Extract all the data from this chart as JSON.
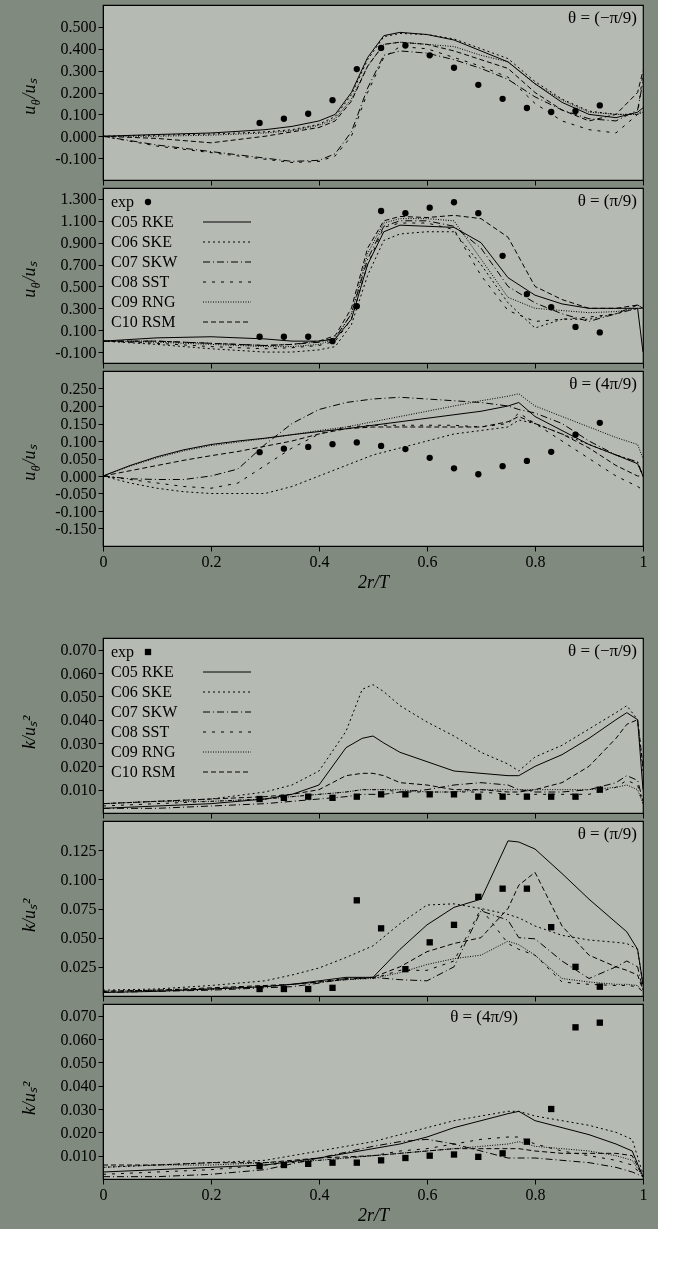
{
  "chart_data": [
    {
      "type": "line",
      "ylabel": "u$_{θ}$/uₛ",
      "xlim": [
        0,
        1
      ],
      "ylim": [
        -0.2,
        0.6
      ],
      "xticks": [
        0,
        0.2,
        0.4,
        0.6,
        0.8,
        1
      ],
      "tick_labels": "y",
      "yticks": [
        {
          "value": -0.1,
          "label": "-0.100"
        },
        {
          "value": 0,
          "label": "0.000"
        },
        {
          "value": 0.1,
          "label": "0.100"
        },
        {
          "value": 0.2,
          "label": "0.200"
        },
        {
          "value": 0.3,
          "label": "0.300"
        },
        {
          "value": 0.4,
          "label": "0.400"
        },
        {
          "value": 0.5,
          "label": "0.500"
        }
      ],
      "annotations": [
        "θ = (−π/9)"
      ],
      "x": [
        0,
        0.1,
        0.2,
        0.3,
        0.35,
        0.4,
        0.43,
        0.46,
        0.49,
        0.52,
        0.55,
        0.6,
        0.65,
        0.7,
        0.75,
        0.8,
        0.85,
        0.9,
        0.95,
        0.99,
        1.0
      ],
      "series": [
        {
          "color": "#000000",
          "line_style": "solid",
          "values": [
            0,
            0.008,
            0.015,
            0.03,
            0.045,
            0.07,
            0.1,
            0.2,
            0.36,
            0.46,
            0.475,
            0.465,
            0.44,
            0.39,
            0.34,
            0.24,
            0.155,
            0.1,
            0.085,
            0.11,
            0.13
          ]
        },
        {
          "color": "#000000",
          "line_style": "dotted",
          "values": [
            0,
            0.005,
            0.01,
            0.02,
            0.03,
            0.055,
            0.09,
            0.19,
            0.35,
            0.455,
            0.47,
            0.465,
            0.445,
            0.4,
            0.355,
            0.25,
            0.17,
            0.115,
            0.1,
            0.1,
            0.12
          ]
        },
        {
          "color": "#000000",
          "line_style": "dashdot",
          "values": [
            0,
            -0.04,
            -0.07,
            -0.1,
            -0.115,
            -0.11,
            -0.08,
            0.02,
            0.22,
            0.37,
            0.39,
            0.38,
            0.35,
            0.31,
            0.26,
            0.18,
            0.12,
            0.08,
            0.07,
            0.12,
            0.25
          ]
        },
        {
          "color": "#000000",
          "line_style": "loosely dashed",
          "values": [
            0,
            -0.045,
            -0.075,
            -0.105,
            -0.12,
            -0.115,
            -0.09,
            0.0,
            0.2,
            0.36,
            0.41,
            0.4,
            0.36,
            0.32,
            0.27,
            0.15,
            0.07,
            0.03,
            0.015,
            0.1,
            0.29
          ]
        },
        {
          "color": "#000000",
          "line_style": "densely dotted",
          "values": [
            0,
            0.0,
            0.005,
            0.015,
            0.025,
            0.05,
            0.08,
            0.17,
            0.32,
            0.42,
            0.43,
            0.42,
            0.41,
            0.37,
            0.34,
            0.24,
            0.165,
            0.11,
            0.1,
            0.1,
            0.11
          ]
        },
        {
          "color": "#000000",
          "line_style": "dashed",
          "values": [
            0,
            -0.01,
            -0.03,
            0.0,
            0.02,
            0.04,
            0.07,
            0.16,
            0.32,
            0.42,
            0.43,
            0.42,
            0.39,
            0.35,
            0.31,
            0.2,
            0.12,
            0.07,
            0.1,
            0.2,
            0.3
          ]
        },
        {
          "type": "scatter",
          "color": "#000000",
          "marker": "circle",
          "x": [
            0.29,
            0.335,
            0.38,
            0.425,
            0.47,
            0.515,
            0.56,
            0.605,
            0.65,
            0.695,
            0.74,
            0.785,
            0.83,
            0.875,
            0.92
          ],
          "values": [
            0.061,
            0.08,
            0.103,
            0.165,
            0.307,
            0.404,
            0.415,
            0.37,
            0.313,
            0.235,
            0.171,
            0.129,
            0.111,
            0.116,
            0.141
          ]
        }
      ]
    },
    {
      "type": "line",
      "ylabel": "u$_{θ}$/uₛ",
      "xlim": [
        0,
        1
      ],
      "ylim": [
        -0.2,
        1.4
      ],
      "xticks": [
        0,
        0.2,
        0.4,
        0.6,
        0.8,
        1
      ],
      "tick_labels": "y",
      "legend": "top left",
      "yticks": [
        {
          "value": -0.1,
          "label": "-0.100"
        },
        {
          "value": 0.1,
          "label": "0.100"
        },
        {
          "value": 0.3,
          "label": "0.300"
        },
        {
          "value": 0.5,
          "label": "0.500"
        },
        {
          "value": 0.7,
          "label": "0.700"
        },
        {
          "value": 0.9,
          "label": "0.900"
        },
        {
          "value": 1.1,
          "label": "1.100"
        },
        {
          "value": 1.3,
          "label": "1.300"
        }
      ],
      "annotations": [
        "θ = (π/9)"
      ],
      "x": [
        0,
        0.1,
        0.2,
        0.3,
        0.35,
        0.4,
        0.43,
        0.46,
        0.49,
        0.52,
        0.55,
        0.6,
        0.65,
        0.7,
        0.75,
        0.8,
        0.85,
        0.9,
        0.95,
        0.99,
        1.0
      ],
      "series": [
        {
          "type": "scatter",
          "name": "exp",
          "color": "#000000",
          "marker": "circle",
          "x": [
            0.29,
            0.335,
            0.38,
            0.425,
            0.47,
            0.515,
            0.56,
            0.605,
            0.65,
            0.695,
            0.74,
            0.785,
            0.83,
            0.875,
            0.92
          ],
          "values": [
            0.04,
            0.04,
            0.04,
            0.0,
            0.32,
            1.19,
            1.17,
            1.22,
            1.27,
            1.17,
            0.78,
            0.43,
            0.31,
            0.13,
            0.08
          ]
        },
        {
          "name": "C05 RKE",
          "color": "#000000",
          "line_style": "solid",
          "values": [
            0,
            0.03,
            0.04,
            0.02,
            0.0,
            0.0,
            0.02,
            0.2,
            0.7,
            1.0,
            1.06,
            1.05,
            1.04,
            0.9,
            0.58,
            0.42,
            0.34,
            0.3,
            0.3,
            0.3,
            -0.1
          ]
        },
        {
          "name": "C06 SKE",
          "color": "#000000",
          "line_style": "dotted",
          "values": [
            0,
            -0.03,
            -0.07,
            -0.1,
            -0.1,
            -0.08,
            -0.05,
            0.15,
            0.6,
            0.92,
            0.98,
            1.0,
            1.0,
            0.7,
            0.35,
            0.12,
            0.2,
            0.2,
            0.25,
            0.3,
            0.3
          ]
        },
        {
          "name": "C07 SKW",
          "color": "#000000",
          "line_style": "dashdot",
          "values": [
            0,
            0.0,
            -0.02,
            -0.04,
            -0.03,
            -0.01,
            0.03,
            0.25,
            0.75,
            1.05,
            1.1,
            1.1,
            1.05,
            0.85,
            0.5,
            0.35,
            0.25,
            0.18,
            0.25,
            0.33,
            0.3
          ]
        },
        {
          "name": "C08 SST",
          "color": "#000000",
          "line_style": "loosely dashed",
          "values": [
            0,
            -0.02,
            -0.05,
            -0.07,
            -0.06,
            -0.04,
            0.0,
            0.2,
            0.7,
            1.04,
            1.08,
            1.08,
            1.02,
            0.6,
            0.28,
            0.18,
            0.2,
            0.22,
            0.25,
            0.3,
            0.3
          ]
        },
        {
          "name": "C09 RNG",
          "color": "#000000",
          "line_style": "densely dotted",
          "values": [
            0,
            -0.01,
            -0.03,
            -0.05,
            -0.05,
            -0.03,
            0.02,
            0.25,
            0.8,
            1.08,
            1.12,
            1.12,
            1.1,
            0.75,
            0.4,
            0.3,
            0.28,
            0.26,
            0.27,
            0.3,
            0.3
          ]
        },
        {
          "name": "C10 RSM",
          "color": "#000000",
          "line_style": "dashed",
          "values": [
            0,
            0.0,
            -0.02,
            -0.04,
            -0.03,
            0.0,
            0.05,
            0.3,
            0.85,
            1.1,
            1.14,
            1.13,
            1.15,
            1.12,
            0.95,
            0.5,
            0.38,
            0.3,
            0.3,
            0.33,
            0.3
          ]
        }
      ]
    },
    {
      "type": "line",
      "ylabel": "u$_{θ}$/uₛ",
      "xlabel": "2r/T",
      "xlim": [
        0,
        1
      ],
      "ylim": [
        -0.2,
        0.3
      ],
      "xticks": [
        0,
        0.2,
        0.4,
        0.6,
        0.8,
        1
      ],
      "yticks": [
        {
          "value": -0.15,
          "label": "-0.150"
        },
        {
          "value": -0.1,
          "label": "-0.100"
        },
        {
          "value": -0.05,
          "label": "-0.050"
        },
        {
          "value": 0,
          "label": "0.000"
        },
        {
          "value": 0.05,
          "label": "0.050"
        },
        {
          "value": 0.1,
          "label": "0.100"
        },
        {
          "value": 0.15,
          "label": "0.150"
        },
        {
          "value": 0.2,
          "label": "0.200"
        },
        {
          "value": 0.25,
          "label": "0.250"
        }
      ],
      "annotations": [
        "θ = (4π/9)"
      ],
      "x": [
        0,
        0.05,
        0.1,
        0.15,
        0.2,
        0.25,
        0.3,
        0.35,
        0.4,
        0.45,
        0.5,
        0.55,
        0.6,
        0.65,
        0.7,
        0.75,
        0.77,
        0.8,
        0.85,
        0.9,
        0.95,
        0.99,
        1.0
      ],
      "series": [
        {
          "color": "#000000",
          "line_style": "solid",
          "values": [
            0,
            0.03,
            0.055,
            0.075,
            0.09,
            0.1,
            0.108,
            0.118,
            0.127,
            0.135,
            0.145,
            0.155,
            0.165,
            0.175,
            0.185,
            0.2,
            0.21,
            0.17,
            0.13,
            0.09,
            0.06,
            0.035,
            0.0
          ]
        },
        {
          "color": "#000000",
          "line_style": "dotted",
          "values": [
            0,
            -0.02,
            -0.035,
            -0.045,
            -0.05,
            -0.05,
            -0.05,
            -0.03,
            0.0,
            0.03,
            0.06,
            0.08,
            0.1,
            0.12,
            0.13,
            0.14,
            0.16,
            0.15,
            0.12,
            0.09,
            0.06,
            0.04,
            0.0
          ]
        },
        {
          "color": "#000000",
          "line_style": "dashdot",
          "values": [
            0,
            -0.008,
            -0.01,
            -0.01,
            0.0,
            0.02,
            0.09,
            0.15,
            0.19,
            0.21,
            0.22,
            0.225,
            0.22,
            0.215,
            0.21,
            0.2,
            0.19,
            0.18,
            0.15,
            0.1,
            0.06,
            0.04,
            0.0
          ]
        },
        {
          "color": "#000000",
          "line_style": "loosely dashed",
          "values": [
            0,
            -0.01,
            -0.02,
            -0.03,
            -0.035,
            -0.02,
            0.03,
            0.08,
            0.12,
            0.14,
            0.145,
            0.145,
            0.145,
            0.145,
            0.14,
            0.15,
            0.18,
            0.15,
            0.1,
            0.05,
            0.0,
            -0.03,
            -0.04
          ]
        },
        {
          "color": "#000000",
          "line_style": "densely dotted",
          "values": [
            0,
            0.028,
            0.052,
            0.072,
            0.087,
            0.097,
            0.107,
            0.118,
            0.13,
            0.14,
            0.155,
            0.17,
            0.185,
            0.2,
            0.215,
            0.228,
            0.235,
            0.2,
            0.17,
            0.14,
            0.11,
            0.09,
            0.05
          ]
        },
        {
          "color": "#000000",
          "line_style": "dashed",
          "values": [
            0,
            0.015,
            0.03,
            0.045,
            0.058,
            0.07,
            0.085,
            0.1,
            0.12,
            0.135,
            0.14,
            0.14,
            0.14,
            0.14,
            0.14,
            0.155,
            0.17,
            0.15,
            0.12,
            0.08,
            0.03,
            0.0,
            0.0
          ]
        },
        {
          "type": "scatter",
          "color": "#000000",
          "marker": "circle",
          "x": [
            0.29,
            0.335,
            0.38,
            0.425,
            0.47,
            0.515,
            0.56,
            0.605,
            0.65,
            0.695,
            0.74,
            0.785,
            0.83,
            0.875,
            0.92
          ],
          "values": [
            0.068,
            0.078,
            0.083,
            0.091,
            0.096,
            0.086,
            0.077,
            0.052,
            0.022,
            0.005,
            0.028,
            0.043,
            0.069,
            0.118,
            0.152
          ]
        }
      ]
    },
    {
      "type": "line",
      "ylabel": "k/uₛ²",
      "xlim": [
        0,
        1
      ],
      "ylim": [
        0,
        0.075
      ],
      "xticks": [
        0,
        0.2,
        0.4,
        0.6,
        0.8,
        1
      ],
      "tick_labels": "y",
      "legend": "top left",
      "yticks": [
        {
          "value": 0.01,
          "label": "0.010"
        },
        {
          "value": 0.02,
          "label": "0.020"
        },
        {
          "value": 0.03,
          "label": "0.030"
        },
        {
          "value": 0.04,
          "label": "0.040"
        },
        {
          "value": 0.05,
          "label": "0.050"
        },
        {
          "value": 0.06,
          "label": "0.060"
        },
        {
          "value": 0.07,
          "label": "0.070"
        }
      ],
      "annotations": [
        "θ = (−π/9)"
      ],
      "x": [
        0,
        0.1,
        0.2,
        0.3,
        0.35,
        0.4,
        0.45,
        0.48,
        0.5,
        0.52,
        0.55,
        0.6,
        0.65,
        0.7,
        0.75,
        0.77,
        0.8,
        0.85,
        0.9,
        0.95,
        0.97,
        0.99,
        1.0
      ],
      "series": [
        {
          "type": "scatter",
          "name": "exp",
          "color": "#000000",
          "marker": "square",
          "x": [
            0.29,
            0.335,
            0.38,
            0.425,
            0.47,
            0.515,
            0.56,
            0.605,
            0.65,
            0.695,
            0.74,
            0.785,
            0.83,
            0.875,
            0.92
          ],
          "values": [
            0.006,
            0.0065,
            0.007,
            0.0065,
            0.007,
            0.008,
            0.008,
            0.008,
            0.008,
            0.007,
            0.007,
            0.007,
            0.007,
            0.007,
            0.01
          ]
        },
        {
          "name": "C05 RKE",
          "color": "#000000",
          "line_style": "solid",
          "values": [
            0.002,
            0.003,
            0.004,
            0.006,
            0.008,
            0.012,
            0.028,
            0.032,
            0.033,
            0.03,
            0.026,
            0.022,
            0.018,
            0.017,
            0.016,
            0.016,
            0.02,
            0.025,
            0.032,
            0.04,
            0.043,
            0.04,
            0.01
          ]
        },
        {
          "name": "C06 SKE",
          "color": "#000000",
          "line_style": "dotted",
          "values": [
            0.004,
            0.005,
            0.006,
            0.009,
            0.012,
            0.018,
            0.035,
            0.053,
            0.055,
            0.052,
            0.046,
            0.039,
            0.033,
            0.026,
            0.021,
            0.018,
            0.024,
            0.029,
            0.036,
            0.043,
            0.046,
            0.04,
            0.018
          ]
        },
        {
          "name": "C07 SKW",
          "color": "#000000",
          "line_style": "dashdot",
          "values": [
            0.002,
            0.002,
            0.003,
            0.004,
            0.005,
            0.006,
            0.007,
            0.008,
            0.008,
            0.008,
            0.009,
            0.01,
            0.012,
            0.013,
            0.012,
            0.01,
            0.009,
            0.009,
            0.01,
            0.013,
            0.016,
            0.014,
            0.005
          ]
        },
        {
          "name": "C08 SST",
          "color": "#000000",
          "line_style": "loosely dashed",
          "values": [
            0.003,
            0.004,
            0.005,
            0.006,
            0.007,
            0.008,
            0.009,
            0.01,
            0.01,
            0.01,
            0.009,
            0.009,
            0.009,
            0.009,
            0.008,
            0.008,
            0.008,
            0.008,
            0.008,
            0.011,
            0.014,
            0.012,
            0.004
          ]
        },
        {
          "name": "C09 RNG",
          "color": "#000000",
          "line_style": "densely dotted",
          "values": [
            0.004,
            0.005,
            0.005,
            0.006,
            0.007,
            0.008,
            0.009,
            0.01,
            0.01,
            0.01,
            0.01,
            0.009,
            0.009,
            0.01,
            0.01,
            0.01,
            0.01,
            0.01,
            0.01,
            0.011,
            0.012,
            0.01,
            0.004
          ]
        },
        {
          "name": "C10 RSM",
          "color": "#000000",
          "line_style": "dashed",
          "values": [
            0.004,
            0.005,
            0.006,
            0.007,
            0.008,
            0.01,
            0.016,
            0.017,
            0.017,
            0.016,
            0.013,
            0.012,
            0.01,
            0.01,
            0.009,
            0.009,
            0.01,
            0.013,
            0.02,
            0.032,
            0.038,
            0.04,
            0.02
          ]
        }
      ]
    },
    {
      "type": "line",
      "ylabel": "k/uₛ²",
      "xlim": [
        0,
        1
      ],
      "ylim": [
        0,
        0.15
      ],
      "xticks": [
        0,
        0.2,
        0.4,
        0.6,
        0.8,
        1
      ],
      "tick_labels": "y",
      "yticks": [
        {
          "value": 0.025,
          "label": "0.025"
        },
        {
          "value": 0.05,
          "label": "0.050"
        },
        {
          "value": 0.075,
          "label": "0.075"
        },
        {
          "value": 0.1,
          "label": "0.100"
        },
        {
          "value": 0.125,
          "label": "0.125"
        }
      ],
      "annotations": [
        "θ = (π/9)"
      ],
      "x": [
        0,
        0.1,
        0.2,
        0.3,
        0.35,
        0.4,
        0.45,
        0.5,
        0.55,
        0.6,
        0.65,
        0.7,
        0.75,
        0.77,
        0.8,
        0.85,
        0.9,
        0.95,
        0.97,
        0.99,
        1.0
      ],
      "series": [
        {
          "color": "#000000",
          "line_style": "solid",
          "values": [
            0.003,
            0.004,
            0.006,
            0.008,
            0.01,
            0.013,
            0.016,
            0.016,
            0.04,
            0.061,
            0.076,
            0.083,
            0.133,
            0.132,
            0.126,
            0.105,
            0.083,
            0.063,
            0.055,
            0.04,
            0.01
          ]
        },
        {
          "color": "#000000",
          "line_style": "dotted",
          "values": [
            0.005,
            0.006,
            0.009,
            0.013,
            0.018,
            0.024,
            0.033,
            0.043,
            0.062,
            0.078,
            0.079,
            0.075,
            0.07,
            0.067,
            0.06,
            0.052,
            0.048,
            0.046,
            0.045,
            0.04,
            0.008
          ]
        },
        {
          "color": "#000000",
          "line_style": "dashdot",
          "values": [
            0.003,
            0.004,
            0.005,
            0.007,
            0.008,
            0.011,
            0.015,
            0.016,
            0.014,
            0.013,
            0.025,
            0.073,
            0.065,
            0.05,
            0.049,
            0.03,
            0.015,
            0.025,
            0.03,
            0.025,
            0.005
          ]
        },
        {
          "color": "#000000",
          "line_style": "loosely dashed",
          "values": [
            0.004,
            0.005,
            0.006,
            0.008,
            0.01,
            0.012,
            0.015,
            0.015,
            0.022,
            0.022,
            0.03,
            0.075,
            0.045,
            0.04,
            0.035,
            0.012,
            0.01,
            0.009,
            0.009,
            0.008,
            0.003
          ]
        },
        {
          "color": "#000000",
          "line_style": "densely dotted",
          "values": [
            0.004,
            0.005,
            0.006,
            0.008,
            0.01,
            0.012,
            0.014,
            0.015,
            0.02,
            0.027,
            0.032,
            0.035,
            0.047,
            0.044,
            0.035,
            0.015,
            0.012,
            0.01,
            0.01,
            0.009,
            0.003
          ]
        },
        {
          "color": "#000000",
          "line_style": "dashed",
          "values": [
            0.004,
            0.005,
            0.007,
            0.009,
            0.01,
            0.012,
            0.014,
            0.016,
            0.025,
            0.038,
            0.045,
            0.05,
            0.075,
            0.095,
            0.106,
            0.06,
            0.035,
            0.025,
            0.022,
            0.018,
            0.005
          ]
        },
        {
          "type": "scatter",
          "color": "#000000",
          "marker": "square",
          "x": [
            0.29,
            0.335,
            0.38,
            0.425,
            0.47,
            0.515,
            0.56,
            0.605,
            0.65,
            0.695,
            0.74,
            0.785,
            0.83,
            0.875,
            0.92
          ],
          "values": [
            0.006,
            0.006,
            0.006,
            0.007,
            0.082,
            0.058,
            0.023,
            0.046,
            0.061,
            0.085,
            0.092,
            0.092,
            0.059,
            0.025,
            0.008
          ]
        }
      ]
    },
    {
      "type": "line",
      "ylabel": "k/uₛ²",
      "xlabel": "2r/T",
      "xlim": [
        0,
        1
      ],
      "ylim": [
        0,
        0.075
      ],
      "xticks": [
        0,
        0.2,
        0.4,
        0.6,
        0.8,
        1
      ],
      "yticks": [
        {
          "value": 0.01,
          "label": "0.010"
        },
        {
          "value": 0.02,
          "label": "0.020"
        },
        {
          "value": 0.03,
          "label": "0.030"
        },
        {
          "value": 0.04,
          "label": "0.040"
        },
        {
          "value": 0.05,
          "label": "0.050"
        },
        {
          "value": 0.06,
          "label": "0.060"
        },
        {
          "value": 0.07,
          "label": "0.070"
        }
      ],
      "annotations": [
        "θ = (4π/9)"
      ],
      "x": [
        0,
        0.1,
        0.2,
        0.3,
        0.4,
        0.5,
        0.55,
        0.6,
        0.65,
        0.7,
        0.75,
        0.77,
        0.8,
        0.85,
        0.9,
        0.95,
        0.98,
        1.0
      ],
      "series": [
        {
          "color": "#000000",
          "line_style": "solid",
          "values": [
            0.003,
            0.004,
            0.005,
            0.006,
            0.009,
            0.013,
            0.015,
            0.018,
            0.022,
            0.025,
            0.028,
            0.029,
            0.025,
            0.022,
            0.019,
            0.015,
            0.012,
            0.001
          ]
        },
        {
          "color": "#000000",
          "line_style": "dotted",
          "values": [
            0.005,
            0.006,
            0.007,
            0.008,
            0.012,
            0.016,
            0.019,
            0.022,
            0.025,
            0.027,
            0.029,
            0.029,
            0.027,
            0.025,
            0.023,
            0.02,
            0.017,
            0.002
          ]
        },
        {
          "color": "#000000",
          "line_style": "dashdot",
          "values": [
            0.001,
            0.001,
            0.002,
            0.004,
            0.009,
            0.014,
            0.016,
            0.017,
            0.015,
            0.012,
            0.009,
            0.009,
            0.009,
            0.008,
            0.007,
            0.005,
            0.003,
            0.001
          ]
        },
        {
          "color": "#000000",
          "line_style": "loosely dashed",
          "values": [
            0.002,
            0.003,
            0.004,
            0.006,
            0.008,
            0.01,
            0.012,
            0.013,
            0.015,
            0.017,
            0.018,
            0.018,
            0.015,
            0.012,
            0.01,
            0.008,
            0.006,
            0.001
          ]
        },
        {
          "color": "#000000",
          "line_style": "densely dotted",
          "values": [
            0.005,
            0.006,
            0.006,
            0.007,
            0.008,
            0.01,
            0.011,
            0.012,
            0.013,
            0.014,
            0.015,
            0.016,
            0.014,
            0.013,
            0.012,
            0.01,
            0.008,
            0.001
          ]
        },
        {
          "color": "#000000",
          "line_style": "dashed",
          "values": [
            0.006,
            0.006,
            0.007,
            0.007,
            0.009,
            0.01,
            0.011,
            0.012,
            0.013,
            0.013,
            0.013,
            0.013,
            0.012,
            0.011,
            0.011,
            0.011,
            0.01,
            0.001
          ]
        },
        {
          "type": "scatter",
          "color": "#000000",
          "marker": "square",
          "x": [
            0.29,
            0.335,
            0.38,
            0.425,
            0.47,
            0.515,
            0.56,
            0.605,
            0.65,
            0.695,
            0.74,
            0.785,
            0.83,
            0.875,
            0.92
          ],
          "values": [
            0.0055,
            0.006,
            0.0065,
            0.007,
            0.007,
            0.008,
            0.009,
            0.01,
            0.0105,
            0.0095,
            0.011,
            0.016,
            0.03,
            0.065,
            0.067
          ]
        }
      ]
    }
  ]
}
